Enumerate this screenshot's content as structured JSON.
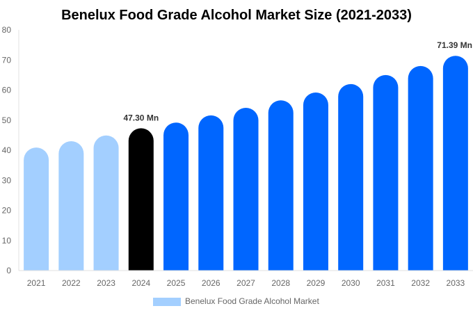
{
  "chart_data": {
    "type": "bar",
    "title": "Benelux Food Grade Alcohol Market Size (2021-2033)",
    "xlabel": "",
    "ylabel": "",
    "ylim": [
      0,
      80
    ],
    "yticks": [
      0,
      10,
      20,
      30,
      40,
      50,
      60,
      70,
      80
    ],
    "grid": false,
    "legend_position": "bottom",
    "categories": [
      "2021",
      "2022",
      "2023",
      "2024",
      "2025",
      "2026",
      "2027",
      "2028",
      "2029",
      "2030",
      "2031",
      "2032",
      "2033"
    ],
    "series": [
      {
        "name": "Benelux Food Grade Alcohol Market",
        "values": [
          40.9,
          43.0,
          44.9,
          47.3,
          49.2,
          51.6,
          54.1,
          56.6,
          59.2,
          62.0,
          65.0,
          68.0,
          71.39
        ]
      }
    ],
    "bar_colors": [
      "#a3cfff",
      "#a3cfff",
      "#a3cfff",
      "#000000",
      "#0066ff",
      "#0066ff",
      "#0066ff",
      "#0066ff",
      "#0066ff",
      "#0066ff",
      "#0066ff",
      "#0066ff",
      "#0066ff"
    ],
    "legend_color": "#a3cfff",
    "data_labels": [
      {
        "category": "2024",
        "text": "47.30 Mn"
      },
      {
        "category": "2033",
        "text": "71.39 Mn"
      }
    ]
  }
}
